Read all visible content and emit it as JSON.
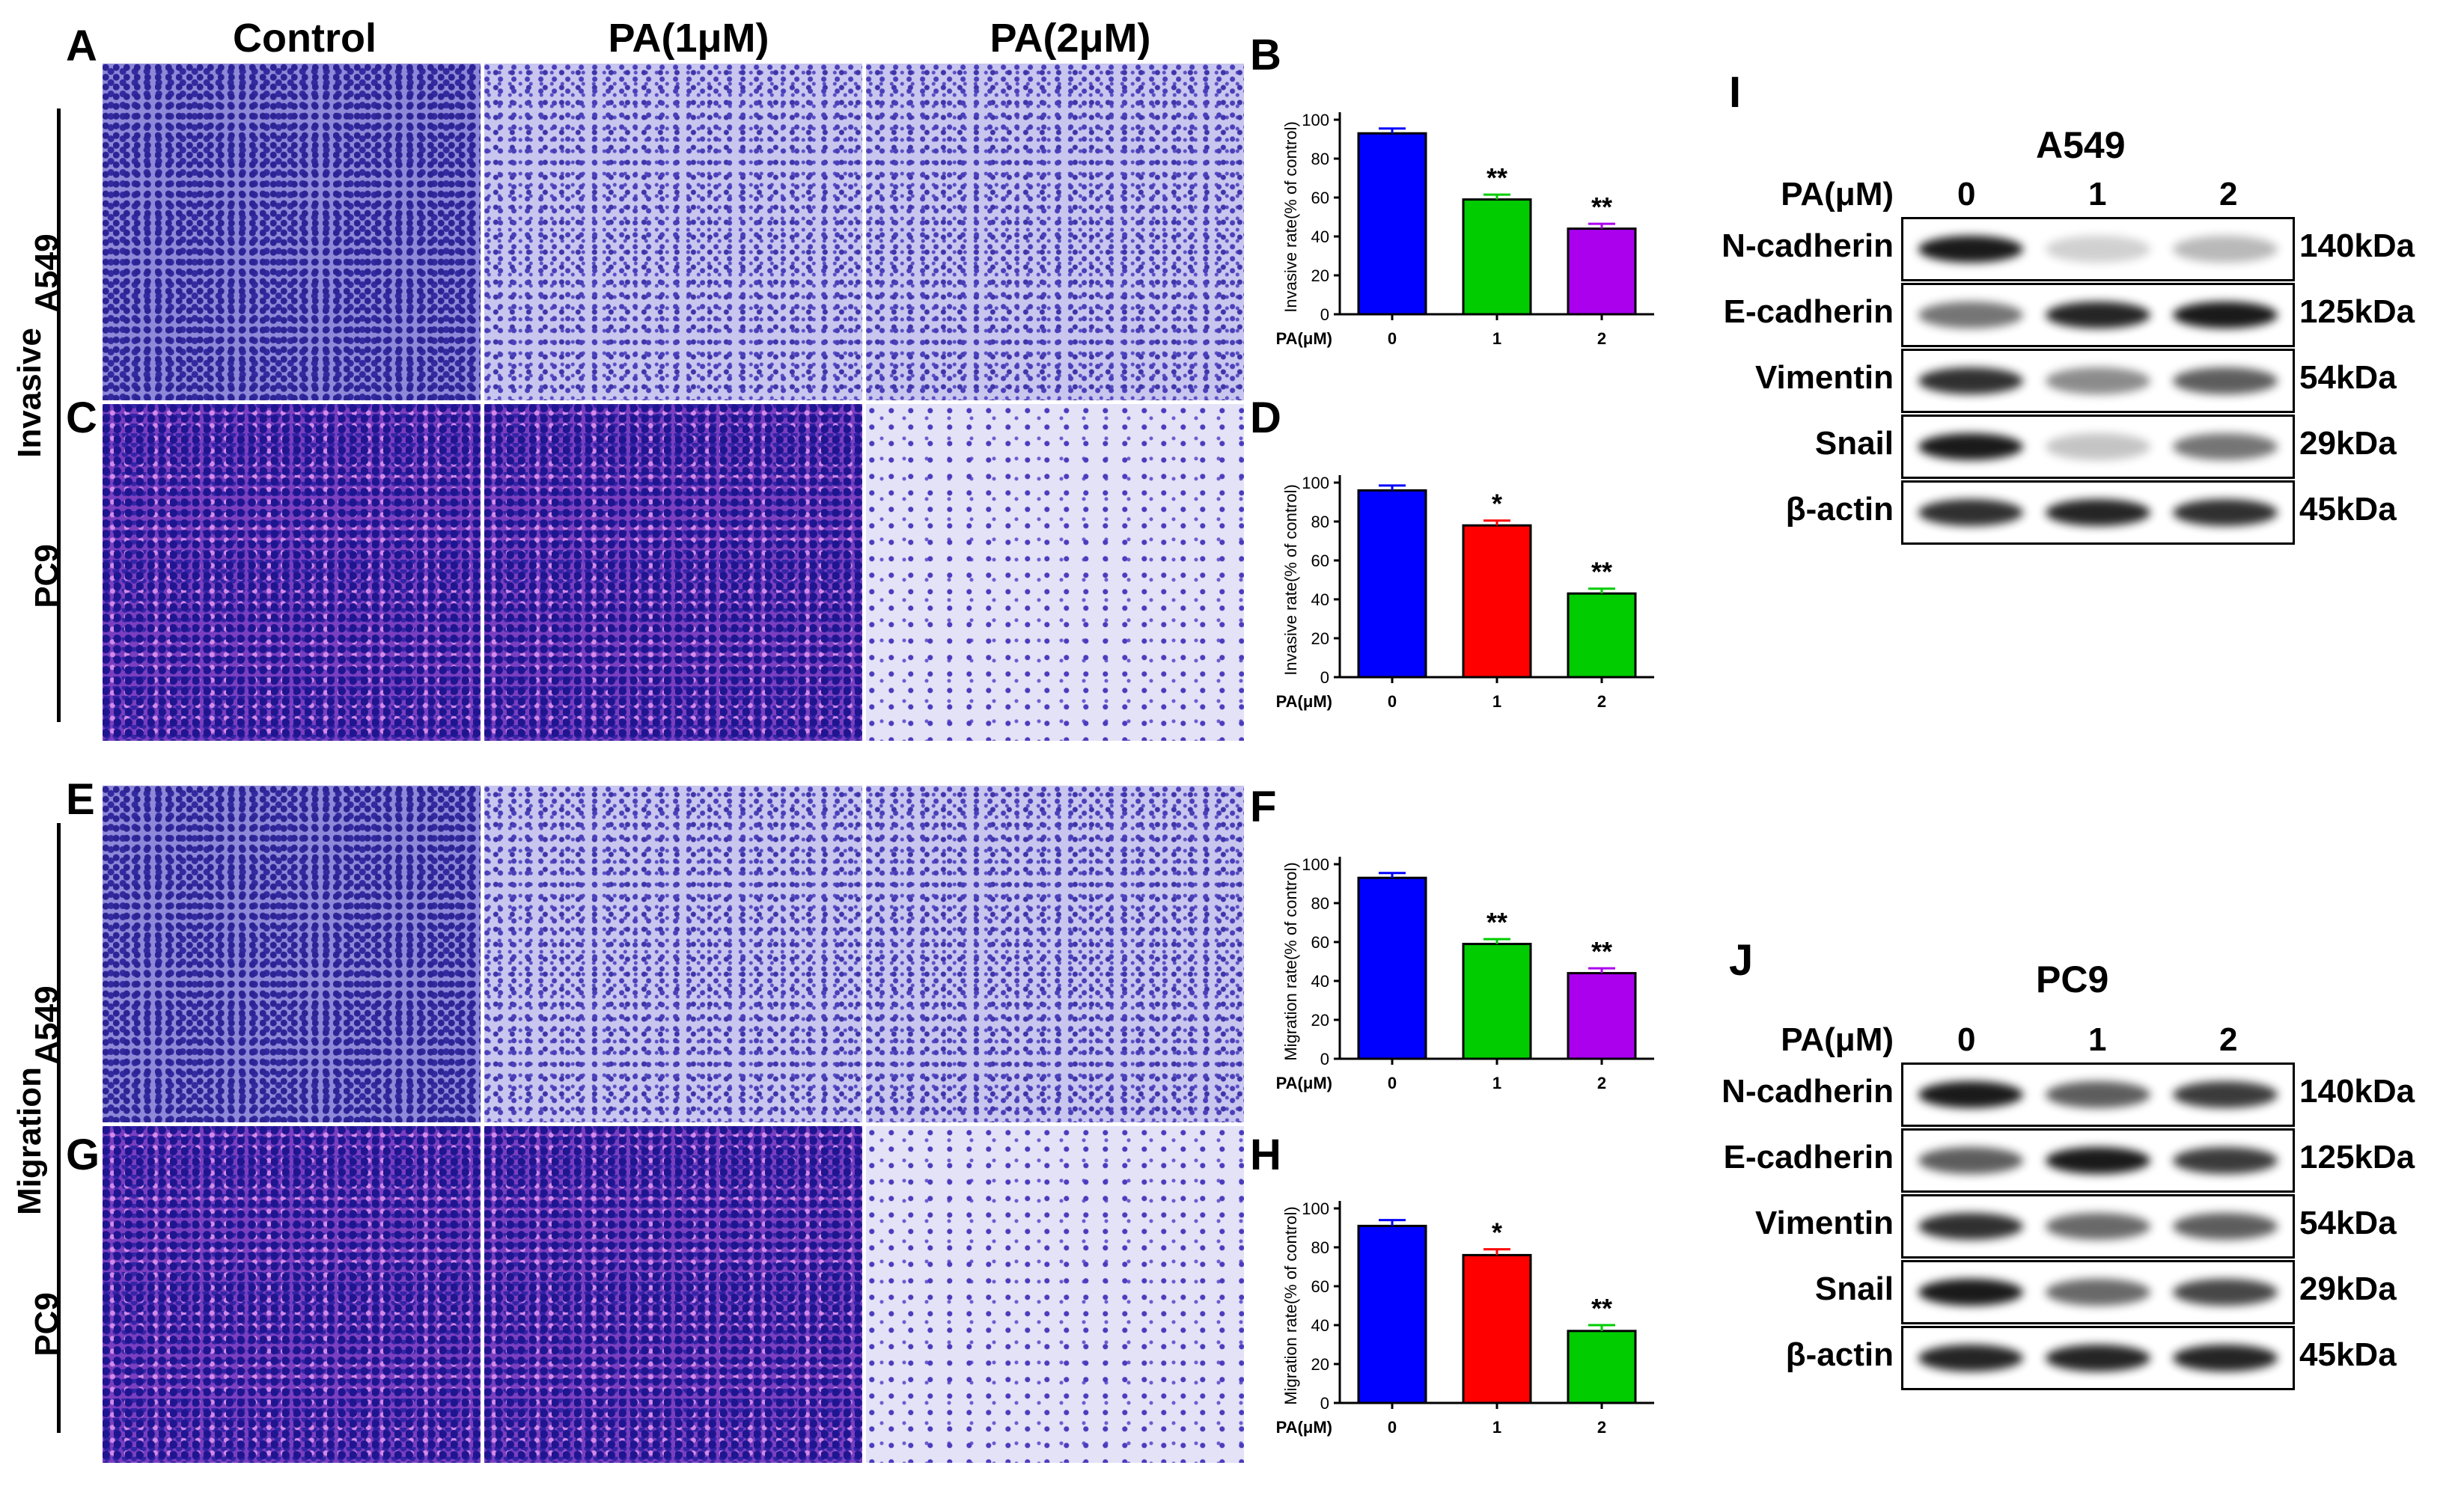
{
  "columns": [
    "Control",
    "PA(1μM)",
    "PA(2μM)"
  ],
  "panel_letters": [
    "A",
    "B",
    "C",
    "D",
    "E",
    "F",
    "G",
    "H",
    "I",
    "J"
  ],
  "side_labels": {
    "invasive": "Invasive",
    "migration": "Migration"
  },
  "row_labels": {
    "a549_top": "A549",
    "pc9_top": "PC9",
    "a549_bottom": "A549",
    "pc9_bottom": "PC9"
  },
  "chart_data": [
    {
      "panel": "B",
      "type": "bar",
      "ylabel": "Invasive rate(% of control)",
      "xprefix": "PA(μM)",
      "categories": [
        "0",
        "1",
        "2"
      ],
      "values": [
        93,
        59,
        44
      ],
      "errors": [
        2.5,
        2.5,
        2.5
      ],
      "significance": [
        "",
        "**",
        "**"
      ],
      "colors": [
        "#0000ff",
        "#00cc00",
        "#aa00ee"
      ],
      "ylim": [
        0,
        100
      ],
      "yticks": [
        0,
        20,
        40,
        60,
        80,
        100
      ]
    },
    {
      "panel": "D",
      "type": "bar",
      "ylabel": "Invasive rate(% of control)",
      "xprefix": "PA(μM)",
      "categories": [
        "0",
        "1",
        "2"
      ],
      "values": [
        96,
        78,
        43
      ],
      "errors": [
        2.5,
        2.5,
        2.5
      ],
      "significance": [
        "",
        "*",
        "**"
      ],
      "colors": [
        "#0000ff",
        "#ff0000",
        "#00cc00"
      ],
      "ylim": [
        0,
        100
      ],
      "yticks": [
        0,
        20,
        40,
        60,
        80,
        100
      ]
    },
    {
      "panel": "F",
      "type": "bar",
      "ylabel": "Migration rate(% of control)",
      "xprefix": "PA(μM)",
      "categories": [
        "0",
        "1",
        "2"
      ],
      "values": [
        93,
        59,
        44
      ],
      "errors": [
        2.5,
        2.5,
        2.5
      ],
      "significance": [
        "",
        "**",
        "**"
      ],
      "colors": [
        "#0000ff",
        "#00cc00",
        "#aa00ee"
      ],
      "ylim": [
        0,
        100
      ],
      "yticks": [
        0,
        20,
        40,
        60,
        80,
        100
      ]
    },
    {
      "panel": "H",
      "type": "bar",
      "ylabel": "Migration rate(% of control)",
      "xprefix": "PA(μM)",
      "categories": [
        "0",
        "1",
        "2"
      ],
      "values": [
        91,
        76,
        37
      ],
      "errors": [
        3,
        3,
        3
      ],
      "significance": [
        "",
        "*",
        "**"
      ],
      "colors": [
        "#0000ff",
        "#ff0000",
        "#00cc00"
      ],
      "ylim": [
        0,
        100
      ],
      "yticks": [
        0,
        20,
        40,
        60,
        80,
        100
      ]
    }
  ],
  "western_blots": [
    {
      "panel": "I",
      "cell_line": "A549",
      "dose_label": "PA(μM)",
      "doses": [
        "0",
        "1",
        "2"
      ],
      "proteins": [
        {
          "name": "N-cadherin",
          "kda": "140kDa",
          "intensity": [
            1.0,
            0.2,
            0.3
          ]
        },
        {
          "name": "E-cadherin",
          "kda": "125kDa",
          "intensity": [
            0.6,
            0.95,
            1.0
          ]
        },
        {
          "name": "Vimentin",
          "kda": "54kDa",
          "intensity": [
            0.9,
            0.5,
            0.7
          ]
        },
        {
          "name": "Snail",
          "kda": "29kDa",
          "intensity": [
            1.0,
            0.25,
            0.6
          ]
        },
        {
          "name": "β-actin",
          "kda": "45kDa",
          "intensity": [
            0.9,
            0.95,
            0.9
          ]
        }
      ]
    },
    {
      "panel": "J",
      "cell_line": "PC9",
      "dose_label": "PA(μM)",
      "doses": [
        "0",
        "1",
        "2"
      ],
      "proteins": [
        {
          "name": "N-cadherin",
          "kda": "140kDa",
          "intensity": [
            1.0,
            0.7,
            0.85
          ]
        },
        {
          "name": "E-cadherin",
          "kda": "125kDa",
          "intensity": [
            0.7,
            1.0,
            0.85
          ]
        },
        {
          "name": "Vimentin",
          "kda": "54kDa",
          "intensity": [
            0.9,
            0.65,
            0.7
          ]
        },
        {
          "name": "Snail",
          "kda": "29kDa",
          "intensity": [
            1.0,
            0.65,
            0.8
          ]
        },
        {
          "name": "β-actin",
          "kda": "45kDa",
          "intensity": [
            0.95,
            0.95,
            0.95
          ]
        }
      ]
    }
  ]
}
